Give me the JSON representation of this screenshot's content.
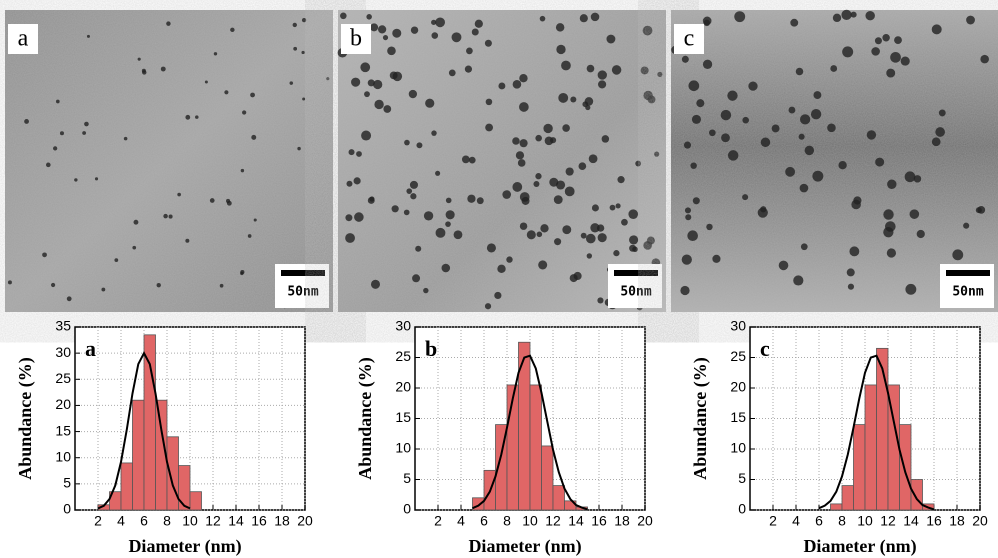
{
  "images": [
    {
      "label": "a",
      "scale_bar": "50nm"
    },
    {
      "label": "b",
      "scale_bar": "50nm"
    },
    {
      "label": "c",
      "scale_bar": "50nm"
    }
  ],
  "chart_data": [
    {
      "type": "histogram",
      "panel_label": "a",
      "x_label": "Diameter (nm)",
      "y_label": "Abundance (%)",
      "bins": [
        2,
        3,
        4,
        5,
        6,
        7,
        8,
        9,
        10,
        11
      ],
      "values": [
        1,
        3.5,
        9,
        21,
        33.5,
        21,
        14,
        8.5,
        3.5
      ],
      "color": "#e06666",
      "fit": {
        "x": [
          2,
          2.5,
          3,
          3.5,
          4,
          4.5,
          5,
          5.5,
          6,
          6.5,
          7,
          7.5,
          8,
          8.5,
          9,
          9.5,
          10
        ],
        "y": [
          0.3,
          0.8,
          2.1,
          4.7,
          9.2,
          15.4,
          22.3,
          27.9,
          30,
          27.9,
          22.3,
          15.4,
          9.2,
          4.7,
          2.1,
          0.8,
          0.3
        ]
      },
      "xlim": [
        0,
        20
      ],
      "xticks": [
        2,
        4,
        6,
        8,
        10,
        12,
        14,
        16,
        18,
        20
      ],
      "ylim": [
        0,
        35
      ],
      "yticks": [
        0,
        5,
        10,
        15,
        20,
        25,
        30,
        35
      ]
    },
    {
      "type": "histogram",
      "panel_label": "b",
      "x_label": "Diameter (nm)",
      "y_label": "Abundance (%)",
      "bins": [
        5,
        6,
        7,
        8,
        9,
        10,
        11,
        12,
        13,
        14,
        15
      ],
      "values": [
        2,
        6.5,
        14,
        20.5,
        27.5,
        20.5,
        10.5,
        4,
        1.5,
        0.5
      ],
      "color": "#e06666",
      "fit": {
        "x": [
          5,
          5.5,
          6,
          6.5,
          7,
          7.5,
          8,
          8.5,
          9,
          9.5,
          10,
          10.5,
          11,
          11.5,
          12,
          12.5,
          13,
          13.5,
          14,
          14.5,
          15
        ],
        "y": [
          0.3,
          0.7,
          1.5,
          3,
          5.5,
          9.1,
          13.5,
          18.3,
          22.5,
          25,
          25.3,
          23.2,
          19.2,
          14.5,
          9.9,
          6.2,
          3.5,
          1.8,
          0.8,
          0.4,
          0.1
        ]
      },
      "xlim": [
        0,
        20
      ],
      "xticks": [
        2,
        4,
        6,
        8,
        10,
        12,
        14,
        16,
        18,
        20
      ],
      "ylim": [
        0,
        30
      ],
      "yticks": [
        0,
        5,
        10,
        15,
        20,
        25,
        30
      ]
    },
    {
      "type": "histogram",
      "panel_label": "c",
      "x_label": "Diameter (nm)",
      "y_label": "Abundance (%)",
      "bins": [
        7,
        8,
        9,
        10,
        11,
        12,
        13,
        14,
        15,
        16
      ],
      "values": [
        1,
        4,
        14,
        20.5,
        26.5,
        20.5,
        14,
        5,
        1
      ],
      "color": "#e06666",
      "fit": {
        "x": [
          6,
          6.5,
          7,
          7.5,
          8,
          8.5,
          9,
          9.5,
          10,
          10.5,
          11,
          11.5,
          12,
          12.5,
          13,
          13.5,
          14,
          14.5,
          15,
          15.5,
          16
        ],
        "y": [
          0.3,
          0.7,
          1.5,
          3,
          5.5,
          9.1,
          13.5,
          18.3,
          22.5,
          25,
          25.3,
          23.2,
          19.2,
          14.5,
          9.9,
          6.2,
          3.5,
          1.8,
          0.8,
          0.4,
          0.1
        ]
      },
      "xlim": [
        0,
        20
      ],
      "xticks": [
        2,
        4,
        6,
        8,
        10,
        12,
        14,
        16,
        18,
        20
      ],
      "ylim": [
        0,
        30
      ],
      "yticks": [
        0,
        5,
        10,
        15,
        20,
        25,
        30
      ]
    }
  ]
}
